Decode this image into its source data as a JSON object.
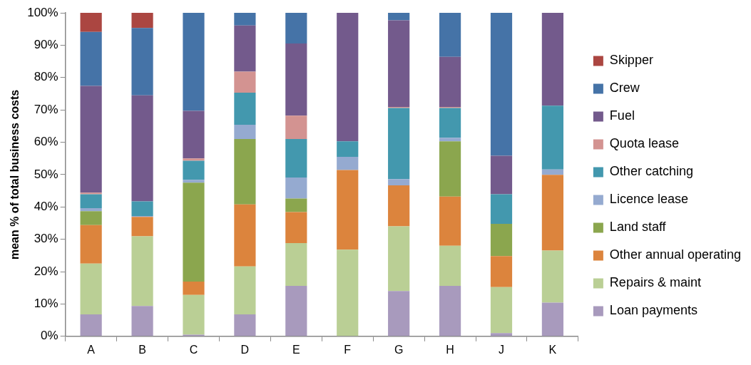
{
  "chart_data": {
    "type": "bar",
    "stacked": true,
    "ylabel": "mean % of total business costs",
    "categories": [
      "A",
      "B",
      "C",
      "D",
      "E",
      "F",
      "G",
      "H",
      "J",
      "K"
    ],
    "series": [
      {
        "name": "Loan payments",
        "color": "#a89abd",
        "values": [
          6.8,
          9.4,
          0.5,
          6.8,
          15.6,
          0,
          14.0,
          15.6,
          1.0,
          10.4
        ]
      },
      {
        "name": "Repairs & maint",
        "color": "#bacf95",
        "values": [
          15.7,
          21.5,
          12.3,
          14.8,
          13.2,
          26.8,
          20.0,
          12.4,
          14.2,
          16.1
        ]
      },
      {
        "name": "Other annual operating",
        "color": "#dc843d",
        "values": [
          11.9,
          6.0,
          4.1,
          19.2,
          9.6,
          24.6,
          12.7,
          15.2,
          9.6,
          23.4
        ]
      },
      {
        "name": "Land staff",
        "color": "#8ba64e",
        "values": [
          4.3,
          0,
          30.6,
          20.2,
          4.2,
          0,
          0,
          17.1,
          10.0,
          0
        ]
      },
      {
        "name": "Licence lease",
        "color": "#95aad0",
        "values": [
          0.9,
          0.3,
          0.9,
          4.4,
          6.5,
          4.1,
          1.9,
          1.1,
          0,
          1.7
        ]
      },
      {
        "name": "Other catching",
        "color": "#4398ae",
        "values": [
          4.3,
          4.5,
          5.9,
          9.9,
          11.9,
          4.8,
          22.0,
          9.2,
          9.1,
          19.7
        ]
      },
      {
        "name": "Quota lease",
        "color": "#d39391",
        "values": [
          0.5,
          0,
          0.7,
          6.5,
          7.2,
          0,
          0.3,
          0.3,
          0,
          0
        ]
      },
      {
        "name": "Fuel",
        "color": "#735a8c",
        "values": [
          33.0,
          32.8,
          14.7,
          14.3,
          22.3,
          39.7,
          26.8,
          15.5,
          11.9,
          28.7
        ]
      },
      {
        "name": "Crew",
        "color": "#4573a7",
        "values": [
          16.7,
          20.8,
          30.3,
          3.9,
          9.5,
          0,
          2.3,
          13.6,
          44.2,
          0
        ]
      },
      {
        "name": "Skipper",
        "color": "#ab4641",
        "values": [
          5.9,
          4.7,
          0,
          0,
          0,
          0,
          0,
          0,
          0,
          0
        ]
      }
    ],
    "ylim": [
      0,
      100
    ],
    "yticks": [
      {
        "value": 0,
        "label": "0%"
      },
      {
        "value": 10,
        "label": "10%"
      },
      {
        "value": 20,
        "label": "20%"
      },
      {
        "value": 30,
        "label": "30%"
      },
      {
        "value": 40,
        "label": "40%"
      },
      {
        "value": 50,
        "label": "50%"
      },
      {
        "value": 60,
        "label": "60%"
      },
      {
        "value": 70,
        "label": "70%"
      },
      {
        "value": 80,
        "label": "80%"
      },
      {
        "value": 90,
        "label": "90%"
      },
      {
        "value": 100,
        "label": "100%"
      }
    ],
    "grid": false,
    "legend": "right"
  }
}
